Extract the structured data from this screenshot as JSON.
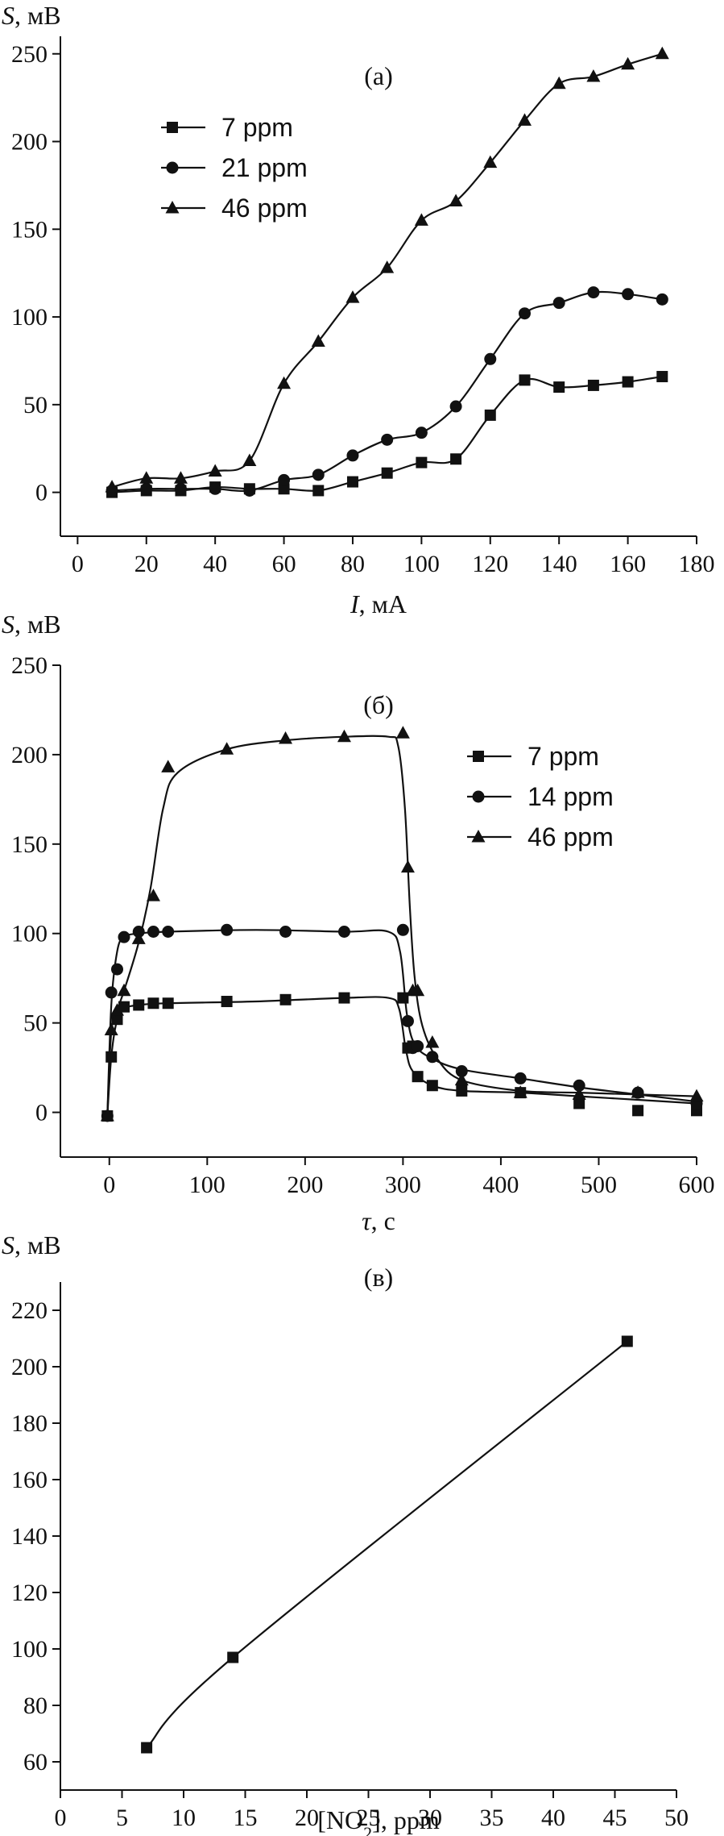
{
  "chart_data": [
    {
      "type": "line",
      "panel_label": "(а)",
      "ylabel_var": "S",
      "ylabel_unit": ", мВ",
      "xlabel_var": "I",
      "xlabel_unit": ", мА",
      "xlim": [
        -5,
        180
      ],
      "ylim": [
        -25,
        260
      ],
      "xticks": [
        0,
        20,
        40,
        60,
        80,
        100,
        120,
        140,
        160,
        180
      ],
      "yticks": [
        0,
        50,
        100,
        150,
        200,
        250
      ],
      "legend": "top-left",
      "grid": false,
      "series": [
        {
          "name": "7 ppm",
          "marker": "square",
          "x": [
            10,
            20,
            30,
            40,
            50,
            60,
            70,
            80,
            90,
            100,
            110,
            120,
            130,
            140,
            150,
            160,
            170
          ],
          "y": [
            0,
            1,
            1,
            3,
            2,
            2,
            1,
            6,
            11,
            17,
            19,
            44,
            64,
            60,
            61,
            63,
            66
          ]
        },
        {
          "name": "21 ppm",
          "marker": "circle",
          "x": [
            10,
            20,
            30,
            40,
            50,
            60,
            70,
            80,
            90,
            100,
            110,
            120,
            130,
            140,
            150,
            160,
            170
          ],
          "y": [
            1,
            2,
            2,
            2,
            1,
            7,
            10,
            21,
            30,
            34,
            49,
            76,
            102,
            108,
            114,
            113,
            110
          ]
        },
        {
          "name": "46 ppm",
          "marker": "triangle",
          "x": [
            10,
            20,
            30,
            40,
            50,
            60,
            70,
            80,
            90,
            100,
            110,
            120,
            130,
            140,
            150,
            160,
            170
          ],
          "y": [
            3,
            8,
            8,
            12,
            18,
            62,
            86,
            111,
            128,
            155,
            166,
            188,
            212,
            233,
            237,
            244,
            250
          ]
        }
      ]
    },
    {
      "type": "line",
      "panel_label": "(б)",
      "ylabel_var": "S",
      "ylabel_unit": ", мВ",
      "xlabel_var": "τ",
      "xlabel_unit": ", с",
      "xlim": [
        -50,
        600
      ],
      "ylim": [
        -25,
        250
      ],
      "xticks": [
        0,
        100,
        200,
        300,
        400,
        500,
        600
      ],
      "yticks": [
        0,
        50,
        100,
        150,
        200,
        250
      ],
      "legend": "top-right",
      "grid": false,
      "series": [
        {
          "name": "7 ppm",
          "marker": "square",
          "x": [
            -2,
            2,
            8,
            15,
            30,
            45,
            60,
            120,
            180,
            240,
            300,
            305,
            310,
            315,
            330,
            360,
            420,
            480,
            540,
            600
          ],
          "y": [
            -2,
            31,
            52,
            59,
            60,
            61,
            61,
            62,
            63,
            64,
            64,
            36,
            37,
            20,
            15,
            12,
            11,
            5,
            1,
            1
          ],
          "curve": [
            [
              -2,
              -2
            ],
            [
              2,
              31
            ],
            [
              8,
              52
            ],
            [
              15,
              58
            ],
            [
              30,
              60
            ],
            [
              60,
              61
            ],
            [
              150,
              62
            ],
            [
              240,
              64
            ],
            [
              285,
              64
            ],
            [
              296,
              58
            ],
            [
              303,
              35
            ],
            [
              310,
              23
            ],
            [
              330,
              15
            ],
            [
              360,
              12
            ],
            [
              420,
              11
            ],
            [
              480,
              9
            ],
            [
              540,
              7
            ],
            [
              600,
              5
            ]
          ]
        },
        {
          "name": "14 ppm",
          "marker": "circle",
          "x": [
            -2,
            2,
            8,
            15,
            30,
            45,
            60,
            120,
            180,
            240,
            300,
            305,
            310,
            315,
            330,
            360,
            420,
            480,
            540,
            600
          ],
          "y": [
            -2,
            67,
            80,
            98,
            101,
            101,
            101,
            102,
            101,
            101,
            102,
            51,
            36,
            37,
            31,
            23,
            19,
            15,
            11,
            5
          ],
          "curve": [
            [
              -2,
              -2
            ],
            [
              2,
              60
            ],
            [
              8,
              90
            ],
            [
              15,
              98
            ],
            [
              30,
              100
            ],
            [
              60,
              101
            ],
            [
              150,
              102
            ],
            [
              240,
              101
            ],
            [
              285,
              101
            ],
            [
              297,
              90
            ],
            [
              304,
              55
            ],
            [
              312,
              38
            ],
            [
              330,
              30
            ],
            [
              360,
              24
            ],
            [
              420,
              19
            ],
            [
              480,
              14
            ],
            [
              540,
              10
            ],
            [
              600,
              6
            ]
          ]
        },
        {
          "name": "46 ppm",
          "marker": "triangle",
          "x": [
            -2,
            2,
            8,
            15,
            30,
            45,
            60,
            120,
            180,
            240,
            300,
            305,
            310,
            315,
            330,
            360,
            420,
            480,
            540,
            600
          ],
          "y": [
            -2,
            46,
            57,
            68,
            97,
            121,
            193,
            203,
            209,
            210,
            212,
            137,
            68,
            68,
            39,
            18,
            11,
            10,
            11,
            9
          ],
          "curve": [
            [
              -2,
              -2
            ],
            [
              2,
              45
            ],
            [
              8,
              57
            ],
            [
              15,
              68
            ],
            [
              30,
              95
            ],
            [
              42,
              125
            ],
            [
              55,
              170
            ],
            [
              70,
              190
            ],
            [
              120,
              203
            ],
            [
              180,
              208
            ],
            [
              240,
              210
            ],
            [
              285,
              210
            ],
            [
              295,
              205
            ],
            [
              302,
              170
            ],
            [
              307,
              115
            ],
            [
              312,
              75
            ],
            [
              320,
              48
            ],
            [
              335,
              30
            ],
            [
              360,
              18
            ],
            [
              420,
              12
            ],
            [
              480,
              11
            ],
            [
              540,
              10
            ],
            [
              600,
              9
            ]
          ]
        }
      ]
    },
    {
      "type": "line",
      "panel_label": "(в)",
      "ylabel_var": "S",
      "ylabel_unit": ", мВ",
      "xlabel_prefix": "[NO",
      "xlabel_sub": "2",
      "xlabel_suffix": "], ppm",
      "xlim": [
        0,
        50
      ],
      "ylim": [
        50,
        230
      ],
      "xticks": [
        0,
        5,
        10,
        15,
        20,
        25,
        30,
        35,
        40,
        45,
        50
      ],
      "yticks": [
        60,
        80,
        100,
        120,
        140,
        160,
        180,
        200,
        220
      ],
      "grid": false,
      "series": [
        {
          "marker": "square",
          "x": [
            7,
            14,
            46
          ],
          "y": [
            65,
            97,
            209
          ]
        }
      ]
    }
  ]
}
